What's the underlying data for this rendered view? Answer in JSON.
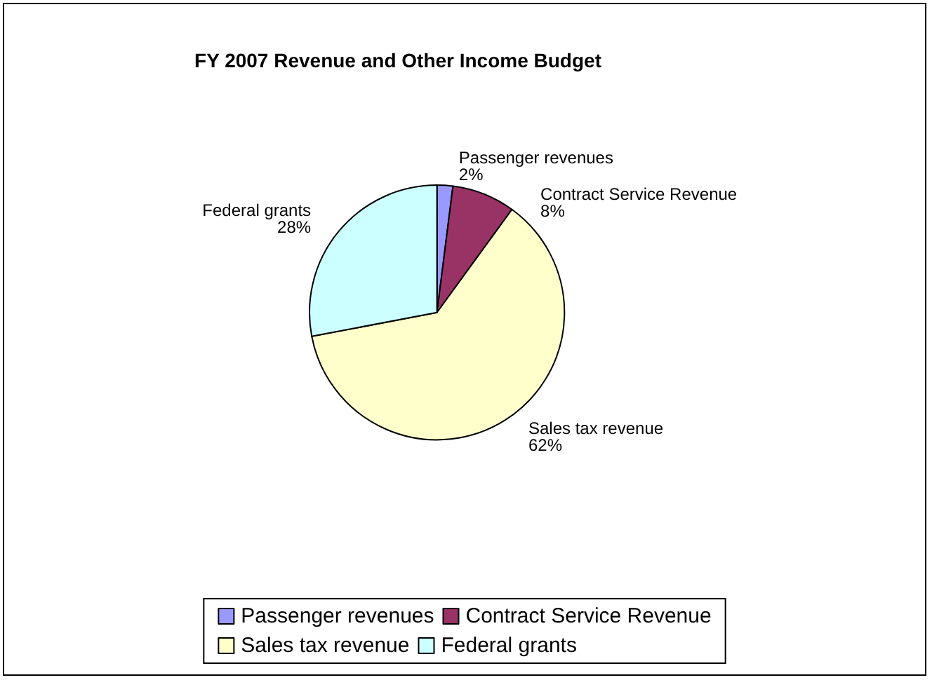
{
  "chart_data": {
    "type": "pie",
    "title": "FY 2007 Revenue and Other Income Budget",
    "categories": [
      "Passenger revenues",
      "Contract Service Revenue",
      "Sales tax revenue",
      "Federal grants"
    ],
    "values": [
      2,
      8,
      62,
      28
    ],
    "colors": [
      "#9999ff",
      "#993366",
      "#ffffcc",
      "#ccffff"
    ],
    "value_labels": [
      "2%",
      "8%",
      "62%",
      "28%"
    ],
    "legend": "bottom"
  }
}
